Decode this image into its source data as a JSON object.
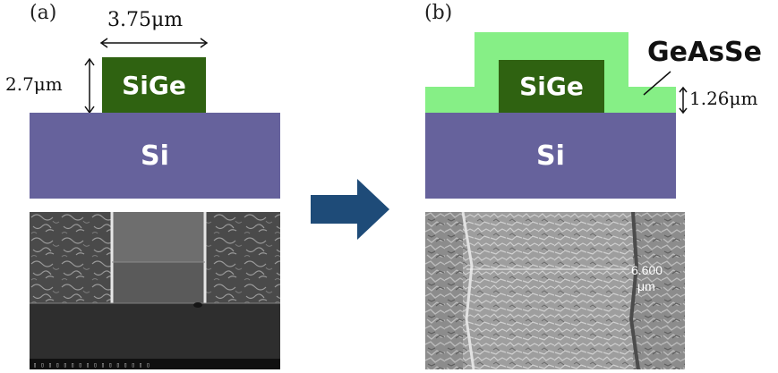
{
  "panel_a": {
    "label": "(a)",
    "width_label": "3.75μm",
    "height_label": "2.7μm",
    "ridge_text": "SiGe",
    "substrate_text": "Si",
    "sem_footer": "▯ ▯ ▯ ▯ ▯ ▯ ▯ ▯ ▯ ▯ ▯ ▯ ▯ ▯ ▯ ▯"
  },
  "panel_b": {
    "label": "(b)",
    "coating_text": "GeAsSe",
    "thickness_label": "1.26μm",
    "ridge_text": "SiGe",
    "substrate_text": "Si",
    "sem_measure_value": "6.600",
    "sem_measure_unit": "μm"
  },
  "colors": {
    "si": "#66629c",
    "sige": "#2f6211",
    "geasse": "#86ef86",
    "arrow": "#1e4b78"
  }
}
